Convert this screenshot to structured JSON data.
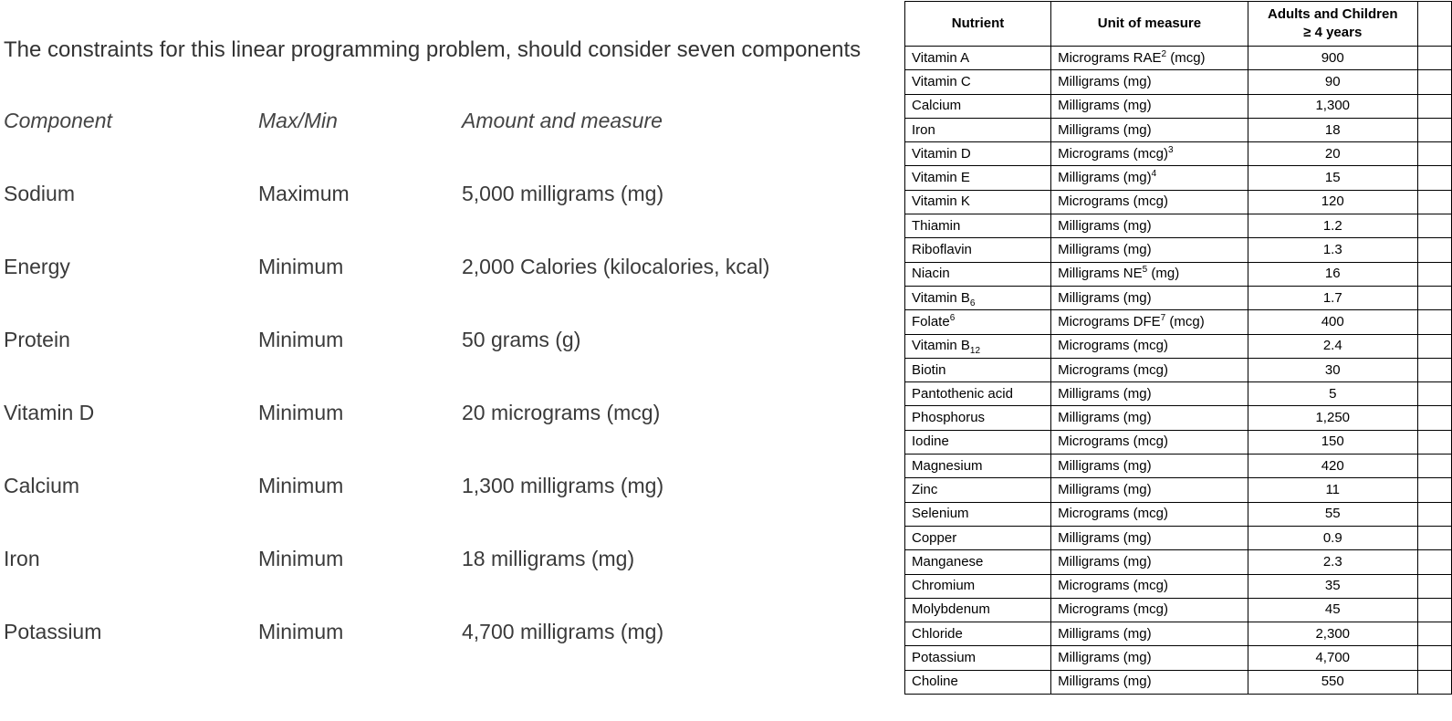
{
  "intro_text": "The constraints for this linear programming problem, should consider seven components",
  "constraints": {
    "headers": {
      "component": "Component",
      "maxmin": "Max/Min",
      "amount": "Amount and measure"
    },
    "rows": [
      {
        "component": "Sodium",
        "maxmin": "Maximum",
        "amount": "5,000 milligrams (mg)"
      },
      {
        "component": "Energy",
        "maxmin": "Minimum",
        "amount": "2,000 Calories (kilocalories, kcal)"
      },
      {
        "component": "Protein",
        "maxmin": "Minimum",
        "amount": "50 grams (g)"
      },
      {
        "component": "Vitamin D",
        "maxmin": "Minimum",
        "amount": "20 micrograms (mcg)"
      },
      {
        "component": "Calcium",
        "maxmin": "Minimum",
        "amount": "1,300 milligrams (mg)"
      },
      {
        "component": "Iron",
        "maxmin": "Minimum",
        "amount": "18 milligrams (mg)"
      },
      {
        "component": "Potassium",
        "maxmin": "Minimum",
        "amount": "4,700 milligrams (mg)"
      }
    ]
  },
  "nutrient_table": {
    "headers": {
      "nutrient": "Nutrient",
      "unit": "Unit of measure",
      "value_line1": "Adults and Children",
      "value_line2": "≥ 4 years"
    },
    "rows": [
      {
        "nutrient": "Vitamin A",
        "unit": "Micrograms RAE",
        "unit_sup": "2",
        "unit_suffix": " (mcg)",
        "value": "900"
      },
      {
        "nutrient": "Vitamin C",
        "unit": "Milligrams (mg)",
        "value": "90"
      },
      {
        "nutrient": "Calcium",
        "unit": "Milligrams (mg)",
        "value": "1,300"
      },
      {
        "nutrient": "Iron",
        "unit": "Milligrams (mg)",
        "value": "18"
      },
      {
        "nutrient": "Vitamin D",
        "unit": "Micrograms (mcg)",
        "unit_sup": "3",
        "value": "20"
      },
      {
        "nutrient": "Vitamin E",
        "unit": "Milligrams (mg)",
        "unit_sup": "4",
        "value": "15"
      },
      {
        "nutrient": "Vitamin K",
        "unit": "Micrograms (mcg)",
        "value": "120"
      },
      {
        "nutrient": "Thiamin",
        "unit": "Milligrams (mg)",
        "value": "1.2"
      },
      {
        "nutrient": "Riboflavin",
        "unit": "Milligrams (mg)",
        "value": "1.3"
      },
      {
        "nutrient": "Niacin",
        "unit": "Milligrams NE",
        "unit_sup": "5",
        "unit_suffix": " (mg)",
        "value": "16"
      },
      {
        "nutrient": "Vitamin B",
        "nutrient_sub": "6",
        "unit": "Milligrams (mg)",
        "value": "1.7"
      },
      {
        "nutrient": "Folate",
        "nutrient_sup": "6",
        "unit": "Micrograms DFE",
        "unit_sup": "7",
        "unit_suffix": " (mcg)",
        "value": "400"
      },
      {
        "nutrient": "Vitamin B",
        "nutrient_sub": "12",
        "unit": "Micrograms (mcg)",
        "value": "2.4"
      },
      {
        "nutrient": "Biotin",
        "unit": "Micrograms (mcg)",
        "value": "30"
      },
      {
        "nutrient": "Pantothenic acid",
        "unit": "Milligrams (mg)",
        "value": "5"
      },
      {
        "nutrient": "Phosphorus",
        "unit": "Milligrams (mg)",
        "value": "1,250"
      },
      {
        "nutrient": "Iodine",
        "unit": "Micrograms (mcg)",
        "value": "150"
      },
      {
        "nutrient": "Magnesium",
        "unit": "Milligrams (mg)",
        "value": "420"
      },
      {
        "nutrient": "Zinc",
        "unit": "Milligrams (mg)",
        "value": "11"
      },
      {
        "nutrient": "Selenium",
        "unit": "Micrograms (mcg)",
        "value": "55"
      },
      {
        "nutrient": "Copper",
        "unit": "Milligrams (mg)",
        "value": "0.9"
      },
      {
        "nutrient": "Manganese",
        "unit": "Milligrams (mg)",
        "value": "2.3"
      },
      {
        "nutrient": "Chromium",
        "unit": "Micrograms (mcg)",
        "value": "35"
      },
      {
        "nutrient": "Molybdenum",
        "unit": "Micrograms (mcg)",
        "value": "45"
      },
      {
        "nutrient": "Chloride",
        "unit": "Milligrams (mg)",
        "value": "2,300"
      },
      {
        "nutrient": "Potassium",
        "unit": "Milligrams (mg)",
        "value": "4,700"
      },
      {
        "nutrient": "Choline",
        "unit": "Milligrams (mg)",
        "value": "550"
      }
    ]
  }
}
